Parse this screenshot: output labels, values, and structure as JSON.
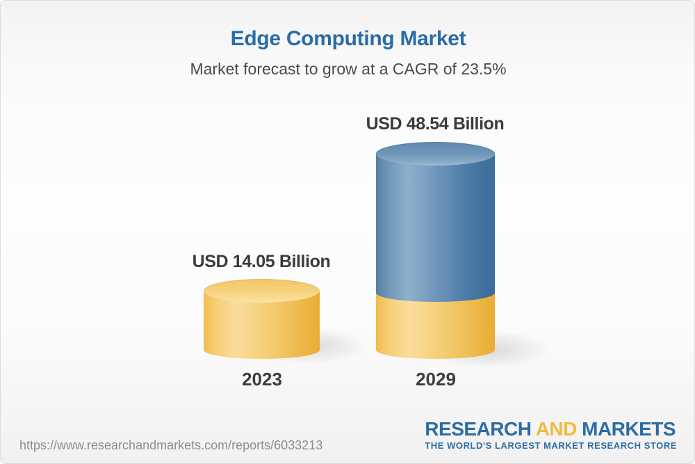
{
  "header": {
    "title": "Edge Computing Market",
    "subtitle": "Market forecast to grow at a CAGR of 23.5%"
  },
  "chart_data": {
    "type": "bar",
    "bar_style": "3d-cylinder",
    "title": "Edge Computing Market",
    "subtitle": "Market forecast to grow at a CAGR of 23.5%",
    "categories": [
      "2023",
      "2029"
    ],
    "values": [
      14.05,
      48.54
    ],
    "unit": "USD Billion",
    "value_labels": [
      "USD 14.05 Billion",
      "USD 48.54 Billion"
    ],
    "cagr_percent": 23.5,
    "legend": "none",
    "grid": false,
    "axes": "none",
    "colors": {
      "bar_2023": "#F5CD74",
      "bar_2029_top_segment": "#5E89B0",
      "bar_2029_base_segment": "#F5CD74",
      "title_text": "#2A6CA6",
      "label_text": "#3B3B3B"
    }
  },
  "footer": {
    "url": "https://www.researchandmarkets.com/reports/6033213",
    "logo": {
      "word1": "RESEARCH",
      "word2": "AND",
      "word3": "MARKETS",
      "tagline": "THE WORLD'S LARGEST MARKET RESEARCH STORE"
    }
  }
}
